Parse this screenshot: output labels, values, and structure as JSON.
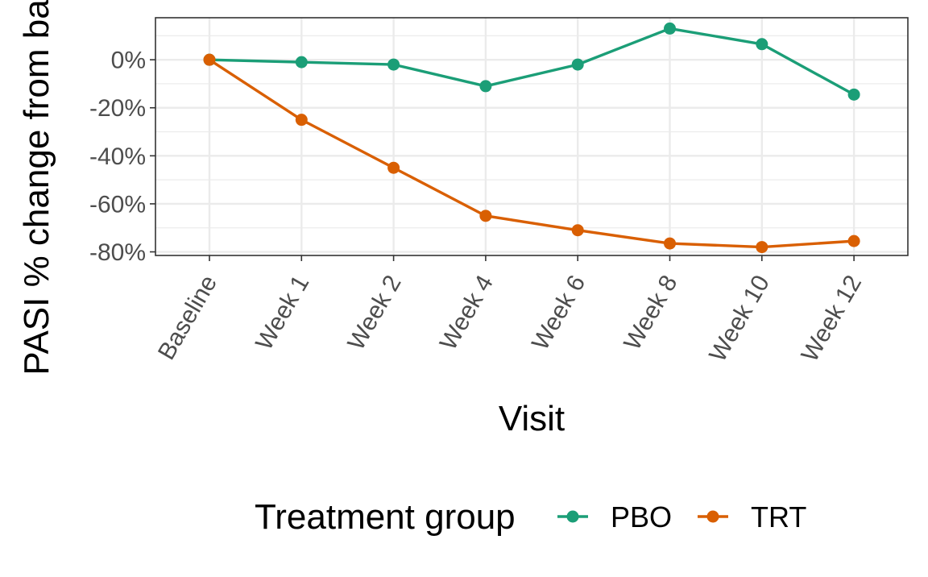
{
  "chart_data": {
    "type": "line",
    "xlabel": "Visit",
    "ylabel": "PASI % change from baseline",
    "categories": [
      "Baseline",
      "Week 1",
      "Week 2",
      "Week 4",
      "Week 6",
      "Week 8",
      "Week 10",
      "Week 12"
    ],
    "y_ticks": [
      "0%",
      "-20%",
      "-40%",
      "-60%",
      "-80%"
    ],
    "y_tick_values": [
      0,
      -20,
      -40,
      -60,
      -80
    ],
    "ylim": [
      -81.5,
      17.5
    ],
    "grid": true,
    "legend": {
      "title": "Treatment group",
      "position": "bottom"
    },
    "series": [
      {
        "name": "PBO",
        "color": "#1b9e77",
        "values": [
          0,
          -1,
          -2,
          -11,
          -2,
          13,
          6.5,
          -14.5
        ]
      },
      {
        "name": "TRT",
        "color": "#d95f02",
        "values": [
          0,
          -25,
          -45,
          -65,
          -71,
          -76.5,
          -78,
          -75.5
        ]
      }
    ]
  }
}
